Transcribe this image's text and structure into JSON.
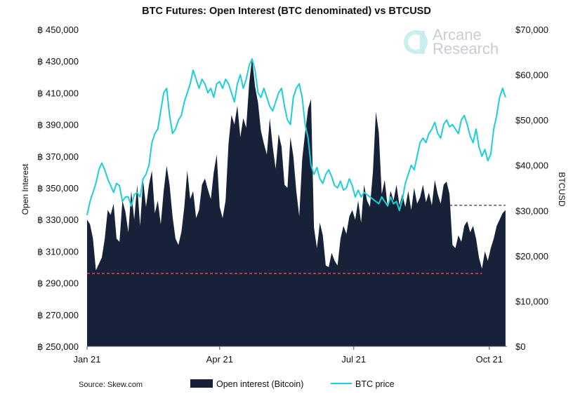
{
  "chart_data": {
    "type": "area",
    "title": "BTC Futures: Open Interest (BTC denominated) vs BTCUSD",
    "ylabel_left": "Open Interest",
    "ylabel_right": "BTCUSD",
    "x_ticks": [
      {
        "label": "Jan 21",
        "day": 0
      },
      {
        "label": "Apr 21",
        "day": 90
      },
      {
        "label": "Jul 21",
        "day": 181
      },
      {
        "label": "Oct 21",
        "day": 273
      }
    ],
    "x_range": [
      0,
      285
    ],
    "y_left": {
      "range": [
        250000,
        450000
      ],
      "ticks": [
        250000,
        270000,
        290000,
        310000,
        330000,
        350000,
        370000,
        390000,
        410000,
        430000,
        450000
      ],
      "tick_labels": [
        "฿ 250,000",
        "฿ 270,000",
        "฿ 290,000",
        "฿ 310,000",
        "฿ 330,000",
        "฿ 350,000",
        "฿ 370,000",
        "฿ 390,000",
        "฿ 410,000",
        "฿ 430,000",
        "฿ 450,000"
      ]
    },
    "y_right": {
      "range": [
        0,
        70000
      ],
      "ticks": [
        0,
        10000,
        20000,
        30000,
        40000,
        50000,
        60000,
        70000
      ],
      "tick_labels": [
        "$0",
        "$10,000",
        "$20,000",
        "$30,000",
        "$40,000",
        "$50,000",
        "$60,000",
        "$70,000"
      ]
    },
    "series": [
      {
        "name": "Open interest (Bitcoin)",
        "axis": "left",
        "style": "area",
        "color": "#172239",
        "points": [
          [
            0,
            330000
          ],
          [
            2,
            327000
          ],
          [
            4,
            318000
          ],
          [
            6,
            298000
          ],
          [
            8,
            302000
          ],
          [
            10,
            306000
          ],
          [
            12,
            318000
          ],
          [
            14,
            336000
          ],
          [
            16,
            333000
          ],
          [
            18,
            340000
          ],
          [
            20,
            318000
          ],
          [
            22,
            316000
          ],
          [
            24,
            342000
          ],
          [
            26,
            335000
          ],
          [
            28,
            322000
          ],
          [
            30,
            348000
          ],
          [
            32,
            330000
          ],
          [
            34,
            352000
          ],
          [
            36,
            326000
          ],
          [
            38,
            355000
          ],
          [
            40,
            338000
          ],
          [
            42,
            352000
          ],
          [
            44,
            361000
          ],
          [
            46,
            334000
          ],
          [
            48,
            342000
          ],
          [
            50,
            327000
          ],
          [
            52,
            348000
          ],
          [
            54,
            364000
          ],
          [
            56,
            352000
          ],
          [
            58,
            332000
          ],
          [
            60,
            318000
          ],
          [
            62,
            314000
          ],
          [
            64,
            322000
          ],
          [
            66,
            338000
          ],
          [
            68,
            361000
          ],
          [
            70,
            343000
          ],
          [
            72,
            348000
          ],
          [
            74,
            331000
          ],
          [
            76,
            336000
          ],
          [
            78,
            352000
          ],
          [
            80,
            356000
          ],
          [
            82,
            349000
          ],
          [
            84,
            343000
          ],
          [
            86,
            360000
          ],
          [
            88,
            371000
          ],
          [
            90,
            338000
          ],
          [
            92,
            331000
          ],
          [
            94,
            342000
          ],
          [
            96,
            378000
          ],
          [
            98,
            396000
          ],
          [
            100,
            390000
          ],
          [
            102,
            402000
          ],
          [
            104,
            382000
          ],
          [
            106,
            394000
          ],
          [
            108,
            388000
          ],
          [
            110,
            416000
          ],
          [
            112,
            432000
          ],
          [
            114,
            414000
          ],
          [
            116,
            404000
          ],
          [
            118,
            386000
          ],
          [
            120,
            378000
          ],
          [
            122,
            371000
          ],
          [
            124,
            394000
          ],
          [
            126,
            376000
          ],
          [
            128,
            362000
          ],
          [
            130,
            384000
          ],
          [
            132,
            376000
          ],
          [
            134,
            352000
          ],
          [
            136,
            350000
          ],
          [
            138,
            382000
          ],
          [
            140,
            370000
          ],
          [
            142,
            348000
          ],
          [
            144,
            332000
          ],
          [
            146,
            368000
          ],
          [
            148,
            385000
          ],
          [
            150,
            400000
          ],
          [
            152,
            406000
          ],
          [
            154,
            325000
          ],
          [
            156,
            312000
          ],
          [
            158,
            328000
          ],
          [
            160,
            320000
          ],
          [
            162,
            301000
          ],
          [
            164,
            300000
          ],
          [
            166,
            309000
          ],
          [
            168,
            304000
          ],
          [
            170,
            301000
          ],
          [
            172,
            318000
          ],
          [
            174,
            326000
          ],
          [
            176,
            321000
          ],
          [
            178,
            332000
          ],
          [
            180,
            336000
          ],
          [
            182,
            330000
          ],
          [
            184,
            342000
          ],
          [
            186,
            328000
          ],
          [
            188,
            352000
          ],
          [
            190,
            342000
          ],
          [
            192,
            338000
          ],
          [
            194,
            360000
          ],
          [
            196,
            398000
          ],
          [
            198,
            385000
          ],
          [
            200,
            346000
          ],
          [
            202,
            355000
          ],
          [
            204,
            338000
          ],
          [
            206,
            348000
          ],
          [
            208,
            342000
          ],
          [
            210,
            352000
          ],
          [
            212,
            339000
          ],
          [
            214,
            346000
          ],
          [
            216,
            338000
          ],
          [
            218,
            348000
          ],
          [
            220,
            336000
          ],
          [
            222,
            350000
          ],
          [
            224,
            340000
          ],
          [
            226,
            344000
          ],
          [
            228,
            352000
          ],
          [
            230,
            341000
          ],
          [
            232,
            347000
          ],
          [
            234,
            339000
          ],
          [
            236,
            355000
          ],
          [
            238,
            346000
          ],
          [
            240,
            340000
          ],
          [
            242,
            352000
          ],
          [
            244,
            354000
          ],
          [
            246,
            346000
          ],
          [
            248,
            314000
          ],
          [
            250,
            312000
          ],
          [
            252,
            320000
          ],
          [
            254,
            316000
          ],
          [
            256,
            326000
          ],
          [
            258,
            329000
          ],
          [
            260,
            322000
          ],
          [
            262,
            326000
          ],
          [
            264,
            318000
          ],
          [
            266,
            306000
          ],
          [
            268,
            299000
          ],
          [
            270,
            310000
          ],
          [
            272,
            304000
          ],
          [
            274,
            312000
          ],
          [
            276,
            318000
          ],
          [
            278,
            326000
          ],
          [
            280,
            330000
          ],
          [
            282,
            334000
          ],
          [
            284,
            336000
          ]
        ]
      },
      {
        "name": "BTC price",
        "axis": "right",
        "style": "line",
        "color": "#1ccfd6",
        "points": [
          [
            0,
            29000
          ],
          [
            2,
            32000
          ],
          [
            4,
            34000
          ],
          [
            6,
            36000
          ],
          [
            8,
            39000
          ],
          [
            10,
            40500
          ],
          [
            12,
            39000
          ],
          [
            14,
            37000
          ],
          [
            16,
            35500
          ],
          [
            18,
            34000
          ],
          [
            20,
            36000
          ],
          [
            22,
            35500
          ],
          [
            24,
            32000
          ],
          [
            26,
            33000
          ],
          [
            28,
            33000
          ],
          [
            30,
            31000
          ],
          [
            32,
            33500
          ],
          [
            34,
            34000
          ],
          [
            36,
            33000
          ],
          [
            38,
            37000
          ],
          [
            40,
            38000
          ],
          [
            42,
            40000
          ],
          [
            44,
            45000
          ],
          [
            46,
            47000
          ],
          [
            48,
            48000
          ],
          [
            50,
            52000
          ],
          [
            52,
            56000
          ],
          [
            54,
            57000
          ],
          [
            56,
            51000
          ],
          [
            58,
            47000
          ],
          [
            60,
            48000
          ],
          [
            62,
            50000
          ],
          [
            64,
            51000
          ],
          [
            66,
            54000
          ],
          [
            68,
            56000
          ],
          [
            70,
            58000
          ],
          [
            72,
            61000
          ],
          [
            74,
            59000
          ],
          [
            76,
            57000
          ],
          [
            78,
            59000
          ],
          [
            80,
            58000
          ],
          [
            82,
            56000
          ],
          [
            84,
            57000
          ],
          [
            86,
            55000
          ],
          [
            88,
            58000
          ],
          [
            90,
            58500
          ],
          [
            92,
            57000
          ],
          [
            94,
            59000
          ],
          [
            96,
            58000
          ],
          [
            98,
            56000
          ],
          [
            100,
            54000
          ],
          [
            102,
            58000
          ],
          [
            104,
            60000
          ],
          [
            106,
            57000
          ],
          [
            108,
            59000
          ],
          [
            110,
            62000
          ],
          [
            112,
            63500
          ],
          [
            114,
            61000
          ],
          [
            116,
            56000
          ],
          [
            118,
            55000
          ],
          [
            120,
            57000
          ],
          [
            122,
            55000
          ],
          [
            124,
            53000
          ],
          [
            126,
            52000
          ],
          [
            128,
            54000
          ],
          [
            130,
            56000
          ],
          [
            132,
            57000
          ],
          [
            134,
            53000
          ],
          [
            136,
            50000
          ],
          [
            138,
            49000
          ],
          [
            140,
            55000
          ],
          [
            142,
            57000
          ],
          [
            144,
            58000
          ],
          [
            146,
            55000
          ],
          [
            148,
            49000
          ],
          [
            150,
            46000
          ],
          [
            152,
            40000
          ],
          [
            154,
            38000
          ],
          [
            156,
            39500
          ],
          [
            158,
            37000
          ],
          [
            160,
            36000
          ],
          [
            162,
            38000
          ],
          [
            164,
            39000
          ],
          [
            166,
            37500
          ],
          [
            168,
            35500
          ],
          [
            170,
            35000
          ],
          [
            172,
            36500
          ],
          [
            174,
            34500
          ],
          [
            176,
            35000
          ],
          [
            178,
            37000
          ],
          [
            180,
            35500
          ],
          [
            182,
            33000
          ],
          [
            184,
            34500
          ],
          [
            186,
            33000
          ],
          [
            188,
            34000
          ],
          [
            190,
            33500
          ],
          [
            192,
            33000
          ],
          [
            194,
            32500
          ],
          [
            196,
            32000
          ],
          [
            198,
            31500
          ],
          [
            200,
            33000
          ],
          [
            202,
            32000
          ],
          [
            204,
            31000
          ],
          [
            206,
            33000
          ],
          [
            208,
            31500
          ],
          [
            210,
            32000
          ],
          [
            212,
            30000
          ],
          [
            214,
            32500
          ],
          [
            216,
            36000
          ],
          [
            218,
            38000
          ],
          [
            220,
            40000
          ],
          [
            222,
            39000
          ],
          [
            224,
            42000
          ],
          [
            226,
            45000
          ],
          [
            228,
            46000
          ],
          [
            230,
            45000
          ],
          [
            232,
            47000
          ],
          [
            234,
            48000
          ],
          [
            236,
            49500
          ],
          [
            238,
            47000
          ],
          [
            240,
            46000
          ],
          [
            242,
            49000
          ],
          [
            244,
            50000
          ],
          [
            246,
            48500
          ],
          [
            248,
            49000
          ],
          [
            250,
            48000
          ],
          [
            252,
            47000
          ],
          [
            254,
            50000
          ],
          [
            256,
            51000
          ],
          [
            258,
            49000
          ],
          [
            260,
            46500
          ],
          [
            262,
            45000
          ],
          [
            264,
            48000
          ],
          [
            266,
            44000
          ],
          [
            268,
            42000
          ],
          [
            270,
            43500
          ],
          [
            272,
            41000
          ],
          [
            274,
            42500
          ],
          [
            276,
            48000
          ],
          [
            278,
            51000
          ],
          [
            280,
            55000
          ],
          [
            282,
            57000
          ],
          [
            284,
            55000
          ]
        ]
      }
    ],
    "reference_lines": [
      {
        "name": "low-reference",
        "axis": "left",
        "value": 296000,
        "from": 0,
        "to": 268,
        "color": "#d9534f",
        "style": "dashed"
      },
      {
        "name": "high-reference",
        "axis": "left",
        "value": 339000,
        "from": 246,
        "to": 284,
        "color": "#333333",
        "style": "dashed"
      }
    ]
  },
  "watermark": {
    "line1": "Arcane",
    "line2": "Research"
  },
  "source": "Source: Skew.com",
  "colors": {
    "oi_fill": "#172239",
    "btc_line": "#1ccfd6",
    "text": "#111111"
  }
}
